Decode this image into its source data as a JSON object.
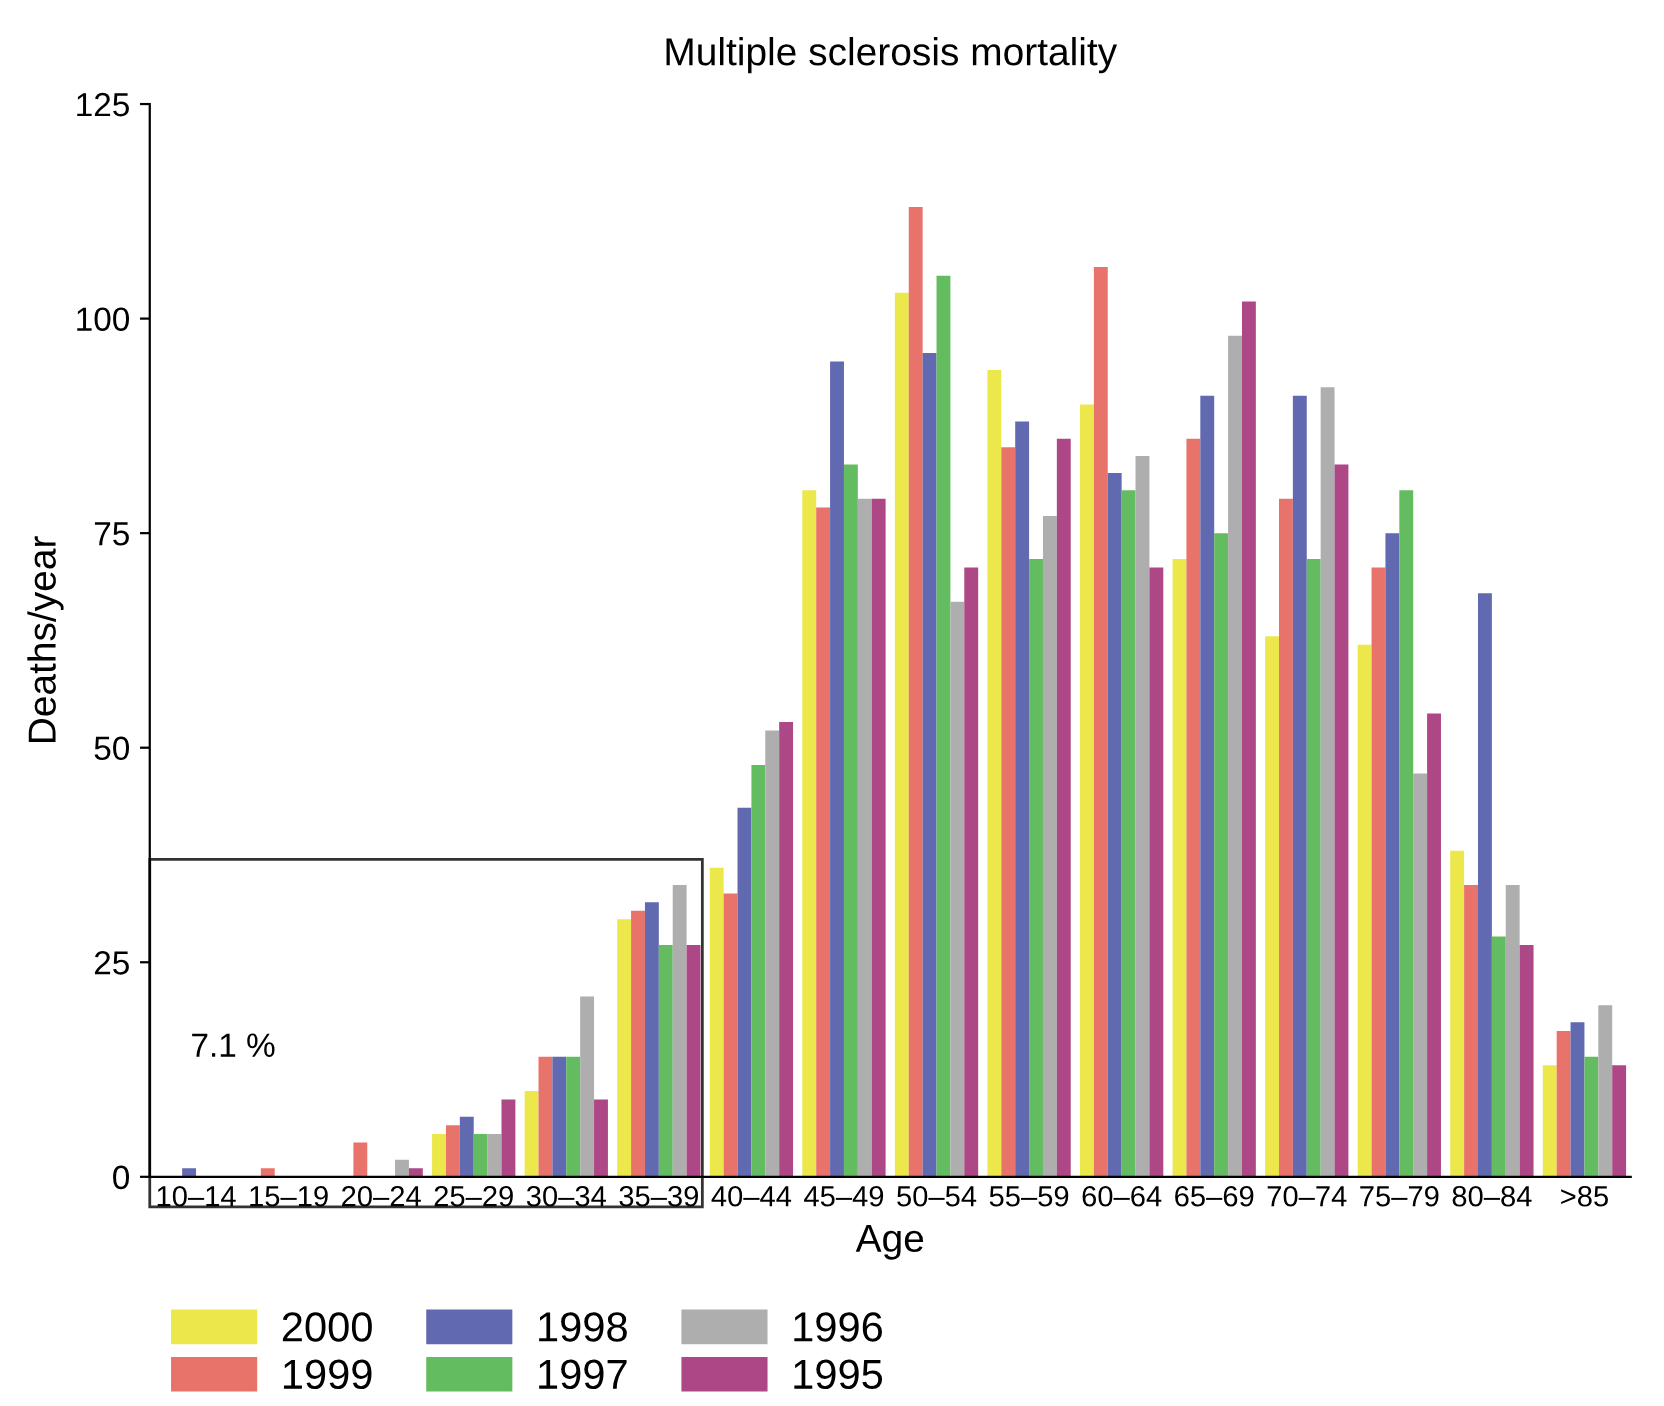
{
  "chart_data": {
    "type": "bar",
    "title": "Multiple sclerosis mortality",
    "xlabel": "Age",
    "ylabel": "Deaths/year",
    "categories": [
      "10–14",
      "15–19",
      "20–24",
      "25–29",
      "30–34",
      "35–39",
      "40–44",
      "45–49",
      "50–54",
      "55–59",
      "60–64",
      "65–69",
      "70–74",
      "75–79",
      "80–84",
      ">85"
    ],
    "series": [
      {
        "name": "2000",
        "color": "#ece74a",
        "values": [
          0,
          0,
          0,
          5,
          10,
          30,
          36,
          80,
          103,
          94,
          90,
          72,
          63,
          62,
          38,
          13
        ]
      },
      {
        "name": "1999",
        "color": "#e8736a",
        "values": [
          0,
          1,
          4,
          6,
          14,
          31,
          33,
          78,
          113,
          85,
          106,
          86,
          79,
          71,
          34,
          17
        ]
      },
      {
        "name": "1998",
        "color": "#6169b1",
        "values": [
          1,
          0,
          0,
          7,
          14,
          32,
          43,
          95,
          96,
          88,
          82,
          91,
          91,
          75,
          68,
          18
        ]
      },
      {
        "name": "1997",
        "color": "#64bc60",
        "values": [
          0,
          0,
          0,
          5,
          14,
          27,
          48,
          83,
          105,
          72,
          80,
          75,
          72,
          80,
          28,
          14
        ]
      },
      {
        "name": "1996",
        "color": "#aeaeae",
        "values": [
          0,
          0,
          2,
          5,
          21,
          34,
          52,
          79,
          67,
          77,
          84,
          98,
          92,
          47,
          34,
          20
        ]
      },
      {
        "name": "1995",
        "color": "#ad4785",
        "values": [
          0,
          0,
          1,
          9,
          9,
          27,
          53,
          79,
          71,
          86,
          71,
          102,
          83,
          54,
          27,
          13
        ]
      }
    ],
    "annotations": [
      "7.1 %"
    ],
    "ylim": [
      0,
      125
    ],
    "yticks": [
      0,
      25,
      50,
      75,
      100,
      125
    ],
    "grid": false,
    "legend": "bottom"
  }
}
